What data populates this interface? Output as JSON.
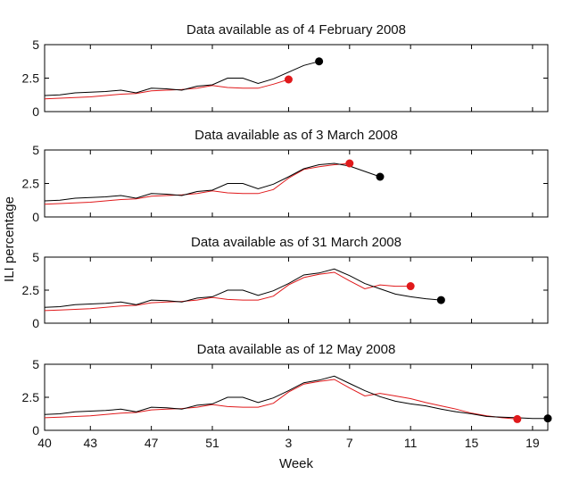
{
  "chart_data": {
    "type": "line",
    "ylabel": "ILI percentage",
    "xlabel": "Week",
    "x_tick_labels": [
      "40",
      "43",
      "47",
      "51",
      "3",
      "7",
      "11",
      "15",
      "19"
    ],
    "x_ticks": [
      0,
      3,
      7,
      11,
      16,
      20,
      24,
      28,
      32
    ],
    "xlim": [
      0,
      33
    ],
    "ylim": [
      0,
      5
    ],
    "y_ticks": [
      0,
      2.5,
      5
    ],
    "y_tick_labels": [
      "0",
      "2.5",
      "5"
    ],
    "x_axis_note": "x values are sequential weeks starting at week 40 of 2007; week 3 of 2008 = 16",
    "colors": {
      "black_series": "#000000",
      "red_series": "#e0191b"
    },
    "panels": [
      {
        "title": "Data available as of 4 February 2008",
        "series": [
          {
            "color": "black",
            "x": [
              0,
              1,
              2,
              3,
              4,
              5,
              6,
              7,
              8,
              9,
              10,
              11,
              12,
              13,
              14,
              15,
              16,
              17,
              18
            ],
            "y": [
              1.2,
              1.25,
              1.4,
              1.45,
              1.5,
              1.6,
              1.4,
              1.75,
              1.7,
              1.6,
              1.9,
              2.0,
              2.5,
              2.5,
              2.1,
              2.45,
              2.95,
              3.45,
              3.75
            ]
          },
          {
            "color": "red",
            "x": [
              0,
              1,
              2,
              3,
              4,
              5,
              6,
              7,
              8,
              9,
              10,
              11,
              12,
              13,
              14,
              15,
              16
            ],
            "y": [
              0.95,
              1.0,
              1.05,
              1.1,
              1.2,
              1.3,
              1.35,
              1.55,
              1.6,
              1.65,
              1.75,
              1.95,
              1.8,
              1.75,
              1.75,
              2.05,
              2.4
            ]
          }
        ],
        "black_marker": [
          18,
          3.75
        ],
        "red_marker": [
          16,
          2.4
        ]
      },
      {
        "title": "Data available as of 3 March 2008",
        "series": [
          {
            "color": "black",
            "x": [
              0,
              1,
              2,
              3,
              4,
              5,
              6,
              7,
              8,
              9,
              10,
              11,
              12,
              13,
              14,
              15,
              16,
              17,
              18,
              19,
              20,
              21,
              22
            ],
            "y": [
              1.2,
              1.25,
              1.4,
              1.45,
              1.5,
              1.6,
              1.4,
              1.75,
              1.7,
              1.6,
              1.9,
              2.0,
              2.5,
              2.5,
              2.1,
              2.45,
              3.0,
              3.6,
              3.9,
              4.0,
              3.8,
              3.4,
              3.0
            ]
          },
          {
            "color": "red",
            "x": [
              0,
              1,
              2,
              3,
              4,
              5,
              6,
              7,
              8,
              9,
              10,
              11,
              12,
              13,
              14,
              15,
              16,
              17,
              18,
              19,
              20
            ],
            "y": [
              0.95,
              1.0,
              1.05,
              1.1,
              1.2,
              1.3,
              1.35,
              1.55,
              1.6,
              1.65,
              1.75,
              1.95,
              1.8,
              1.75,
              1.75,
              2.05,
              2.9,
              3.55,
              3.75,
              3.9,
              4.0
            ]
          }
        ],
        "black_marker": [
          22,
          3.0
        ],
        "red_marker": [
          20,
          4.0
        ]
      },
      {
        "title": "Data available as of 31 March 2008",
        "series": [
          {
            "color": "black",
            "x": [
              0,
              1,
              2,
              3,
              4,
              5,
              6,
              7,
              8,
              9,
              10,
              11,
              12,
              13,
              14,
              15,
              16,
              17,
              18,
              19,
              20,
              21,
              22,
              23,
              24,
              25,
              26
            ],
            "y": [
              1.2,
              1.25,
              1.4,
              1.45,
              1.5,
              1.6,
              1.4,
              1.75,
              1.7,
              1.6,
              1.9,
              2.0,
              2.5,
              2.5,
              2.1,
              2.45,
              3.0,
              3.65,
              3.8,
              4.1,
              3.6,
              3.0,
              2.6,
              2.2,
              2.0,
              1.85,
              1.75
            ]
          },
          {
            "color": "red",
            "x": [
              0,
              1,
              2,
              3,
              4,
              5,
              6,
              7,
              8,
              9,
              10,
              11,
              12,
              13,
              14,
              15,
              16,
              17,
              18,
              19,
              20,
              21,
              22,
              23,
              24
            ],
            "y": [
              0.95,
              1.0,
              1.05,
              1.1,
              1.2,
              1.3,
              1.35,
              1.55,
              1.6,
              1.65,
              1.75,
              1.95,
              1.8,
              1.75,
              1.75,
              2.05,
              2.9,
              3.45,
              3.7,
              3.85,
              3.2,
              2.6,
              2.9,
              2.8,
              2.8
            ]
          }
        ],
        "black_marker": [
          26,
          1.75
        ],
        "red_marker": [
          24,
          2.8
        ]
      },
      {
        "title": "Data available as of 12 May 2008",
        "series": [
          {
            "color": "black",
            "x": [
              0,
              1,
              2,
              3,
              4,
              5,
              6,
              7,
              8,
              9,
              10,
              11,
              12,
              13,
              14,
              15,
              16,
              17,
              18,
              19,
              20,
              21,
              22,
              23,
              24,
              25,
              26,
              27,
              28,
              29,
              30,
              31,
              32,
              33
            ],
            "y": [
              1.2,
              1.25,
              1.4,
              1.45,
              1.5,
              1.6,
              1.4,
              1.75,
              1.7,
              1.6,
              1.9,
              2.0,
              2.5,
              2.5,
              2.1,
              2.45,
              3.0,
              3.6,
              3.8,
              4.1,
              3.55,
              3.0,
              2.55,
              2.2,
              2.0,
              1.85,
              1.6,
              1.4,
              1.25,
              1.05,
              1.0,
              0.95,
              0.9,
              0.9
            ]
          },
          {
            "color": "red",
            "x": [
              0,
              1,
              2,
              3,
              4,
              5,
              6,
              7,
              8,
              9,
              10,
              11,
              12,
              13,
              14,
              15,
              16,
              17,
              18,
              19,
              20,
              21,
              22,
              23,
              24,
              25,
              26,
              27,
              28,
              29,
              30,
              31
            ],
            "y": [
              0.95,
              1.0,
              1.05,
              1.1,
              1.2,
              1.3,
              1.35,
              1.55,
              1.6,
              1.65,
              1.75,
              1.95,
              1.8,
              1.75,
              1.75,
              2.05,
              2.9,
              3.5,
              3.7,
              3.85,
              3.2,
              2.6,
              2.8,
              2.6,
              2.4,
              2.1,
              1.85,
              1.6,
              1.3,
              1.1,
              0.95,
              0.85
            ]
          }
        ],
        "black_marker": [
          33,
          0.9
        ],
        "red_marker": [
          31,
          0.85
        ]
      }
    ]
  }
}
